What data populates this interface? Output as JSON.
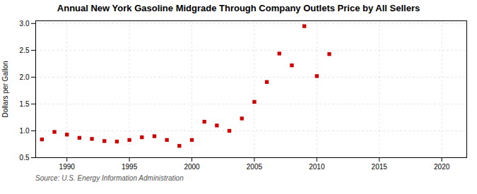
{
  "chart_data": {
    "type": "scatter",
    "title": "Annual New York Gasoline Midgrade Through Company Outlets Price by All Sellers",
    "y_label": "Dollars per Gallon",
    "annotations": [
      "Source: U.S. Energy Information Administration"
    ],
    "x": [
      1988,
      1989,
      1990,
      1991,
      1992,
      1993,
      1994,
      1995,
      1996,
      1997,
      1998,
      1999,
      2000,
      2001,
      2002,
      2003,
      2004,
      2005,
      2006,
      2007,
      2008,
      2009,
      2010,
      2011
    ],
    "values": [
      0.84,
      0.98,
      0.93,
      0.87,
      0.85,
      0.81,
      0.8,
      0.83,
      0.88,
      0.9,
      0.83,
      0.72,
      0.83,
      1.17,
      1.1,
      1.0,
      1.23,
      1.54,
      1.91,
      2.44,
      2.22,
      2.95,
      2.02,
      2.43
    ],
    "color": "#CC0000",
    "marker": "square",
    "xlim": [
      1987.5,
      2022
    ],
    "ylim": [
      0.5,
      3.05
    ],
    "xticks": [
      1990,
      1995,
      2000,
      2005,
      2010,
      2015,
      2020
    ],
    "yticks": [
      0.5,
      {
        "value": 1.0,
        "label": "1.0"
      },
      1.5,
      {
        "value": 2.0,
        "label": "2.0"
      },
      2.5,
      {
        "value": 3.0,
        "label": "3.0"
      }
    ],
    "grid": true
  }
}
